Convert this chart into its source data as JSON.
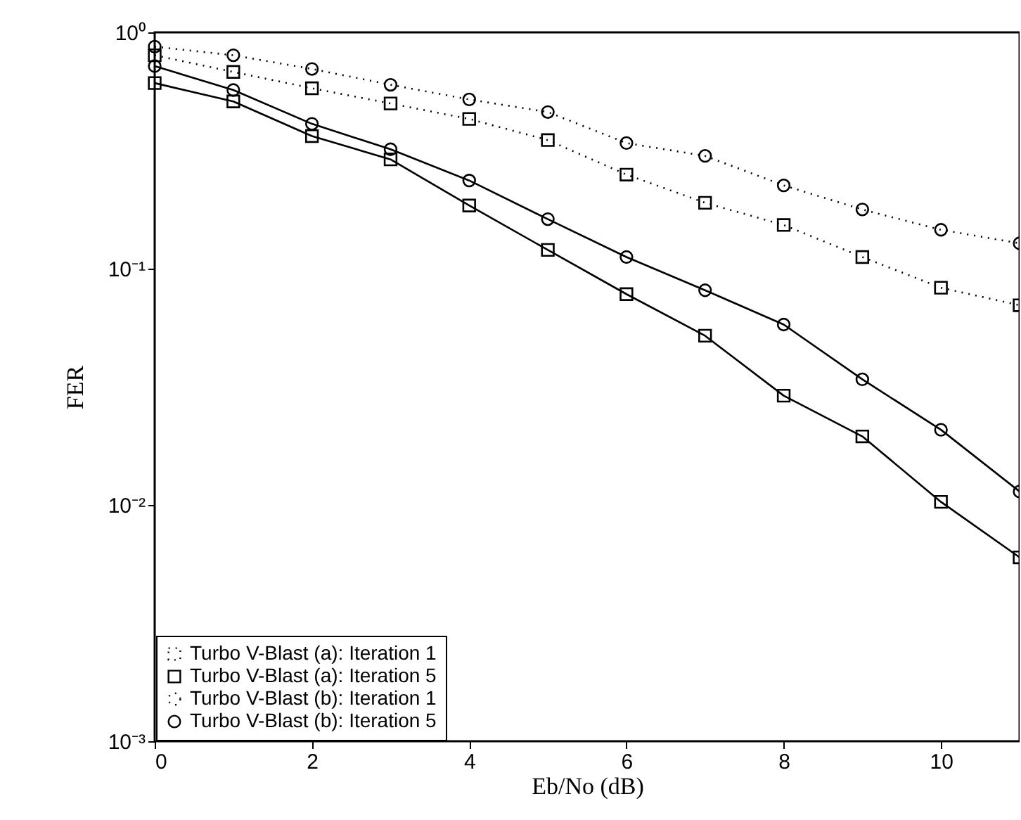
{
  "chart_data": {
    "type": "line",
    "xlabel": "Eb/No (dB)",
    "ylabel": "FER",
    "log": true,
    "grid": false,
    "legend": "bottom left",
    "x": [
      0,
      1,
      2,
      3,
      4,
      5,
      6,
      7,
      8,
      9,
      10,
      11
    ],
    "xlim": [
      0,
      11
    ],
    "xticks": [
      0,
      2,
      4,
      6,
      8,
      10
    ],
    "ylim": [
      0.001,
      1
    ],
    "yticks": [
      {
        "value": 0.001,
        "label": "10⁻³"
      },
      {
        "value": 0.01,
        "label": "10⁻²"
      },
      {
        "value": 0.1,
        "label": "10⁻¹"
      },
      {
        "value": 1,
        "label": "10⁰"
      }
    ],
    "series": [
      {
        "name": "Turbo V-Blast (a): Iteration 1",
        "color": "#000000",
        "marker": "square",
        "line_style": "dotted",
        "values": [
          0.8,
          0.68,
          0.58,
          0.5,
          0.43,
          0.35,
          0.25,
          0.19,
          0.153,
          0.112,
          0.083,
          0.07
        ]
      },
      {
        "name": "Turbo V-Blast (a): Iteration 5",
        "color": "#000000",
        "marker": "square",
        "line_style": "solid",
        "values": [
          0.61,
          0.51,
          0.364,
          0.29,
          0.185,
          0.12,
          0.078,
          0.052,
          0.029,
          0.0195,
          0.0103,
          0.006
        ]
      },
      {
        "name": "Turbo V-Blast (b): Iteration 1",
        "color": "#000000",
        "marker": "circle",
        "line_style": "dotted",
        "values": [
          0.87,
          0.8,
          0.7,
          0.6,
          0.52,
          0.46,
          0.34,
          0.3,
          0.225,
          0.178,
          0.146,
          0.128
        ]
      },
      {
        "name": "Turbo V-Blast (b): Iteration 5",
        "color": "#000000",
        "marker": "circle",
        "line_style": "solid",
        "values": [
          0.72,
          0.57,
          0.41,
          0.32,
          0.236,
          0.162,
          0.112,
          0.081,
          0.058,
          0.034,
          0.0208,
          0.0114
        ]
      }
    ]
  }
}
